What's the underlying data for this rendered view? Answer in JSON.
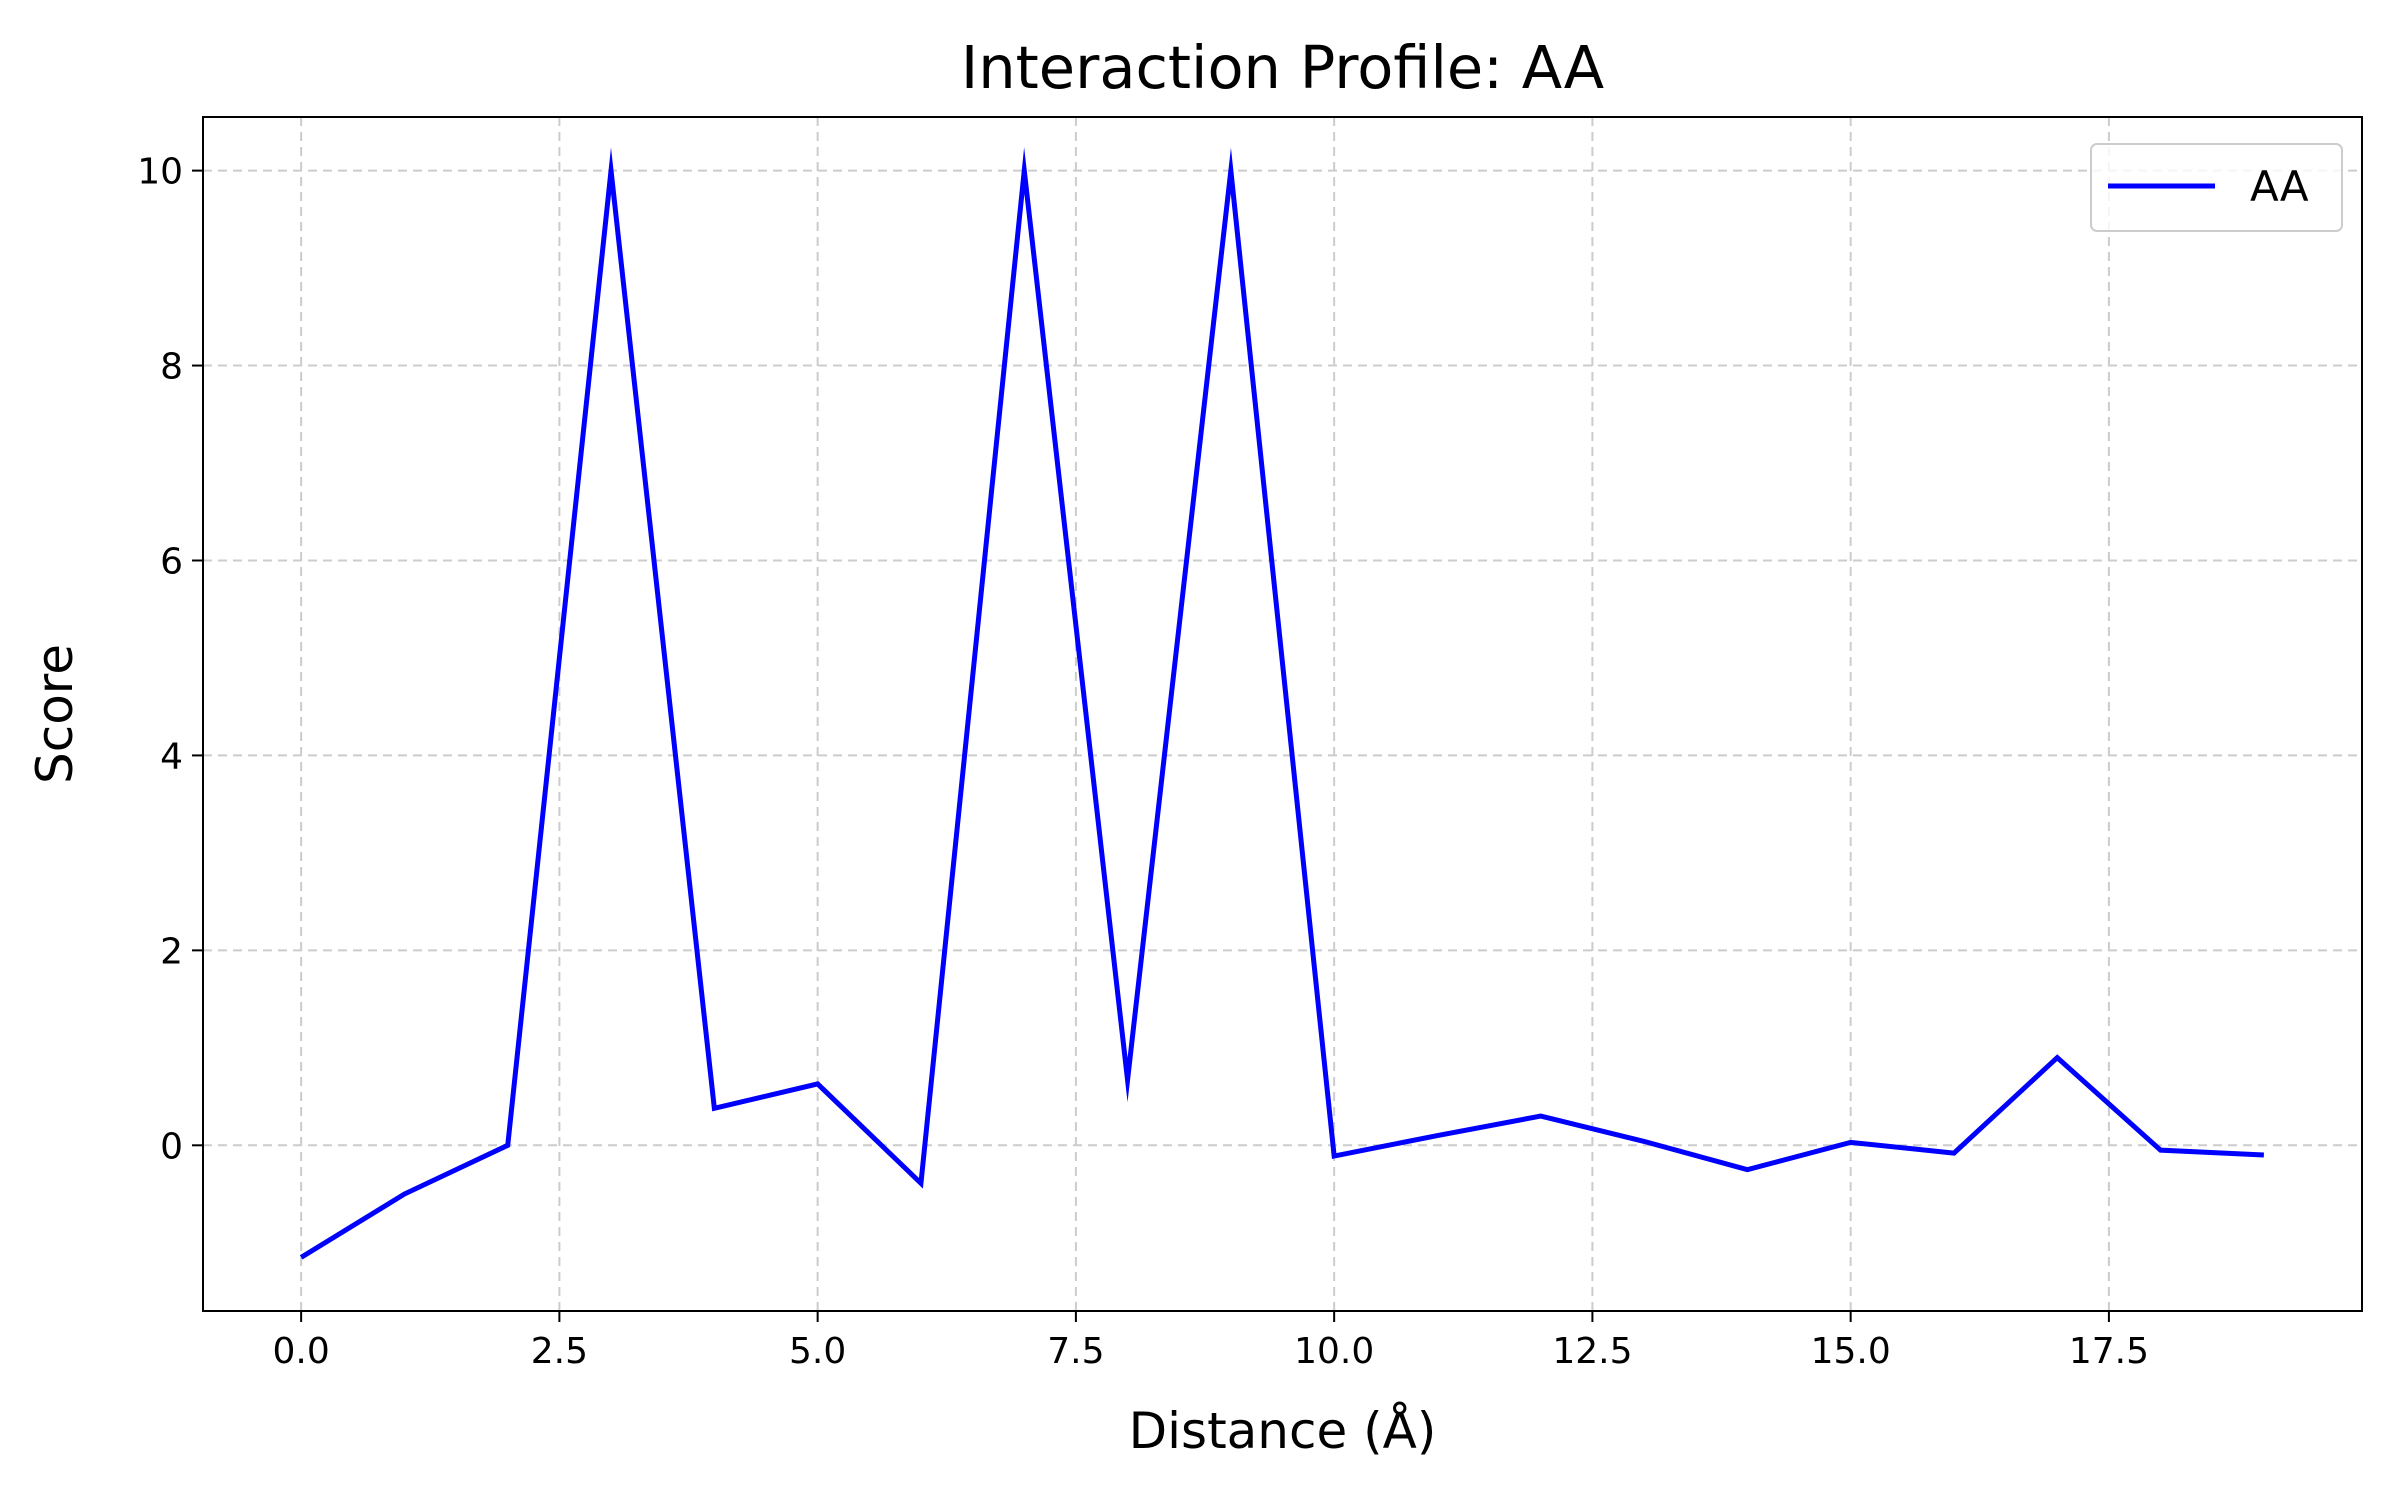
{
  "chart_data": {
    "type": "line",
    "title": "Interaction Profile: AA",
    "xlabel": "Distance (Å)",
    "ylabel": "Score",
    "xlim": [
      -0.95,
      19.95
    ],
    "ylim": [
      -1.7,
      10.55
    ],
    "xticks": [
      0.0,
      2.5,
      5.0,
      7.5,
      10.0,
      12.5,
      15.0,
      17.5
    ],
    "xtick_labels": [
      "0.0",
      "2.5",
      "5.0",
      "7.5",
      "10.0",
      "12.5",
      "15.0",
      "17.5"
    ],
    "yticks": [
      0,
      2,
      4,
      6,
      8,
      10
    ],
    "ytick_labels": [
      "0",
      "2",
      "4",
      "6",
      "8",
      "10"
    ],
    "grid": true,
    "legend_position": "top-right",
    "series": [
      {
        "name": "AA",
        "color": "#0000ff",
        "x": [
          0,
          1,
          2,
          3,
          4,
          5,
          6,
          7,
          8,
          9,
          10,
          11,
          12,
          13,
          14,
          15,
          16,
          17,
          18,
          19
        ],
        "y": [
          -1.15,
          -0.5,
          0.0,
          10.0,
          0.38,
          0.63,
          -0.39,
          10.0,
          0.67,
          10.0,
          -0.11,
          0.1,
          0.3,
          0.04,
          -0.25,
          0.03,
          -0.08,
          0.9,
          -0.05,
          -0.1
        ]
      }
    ]
  }
}
